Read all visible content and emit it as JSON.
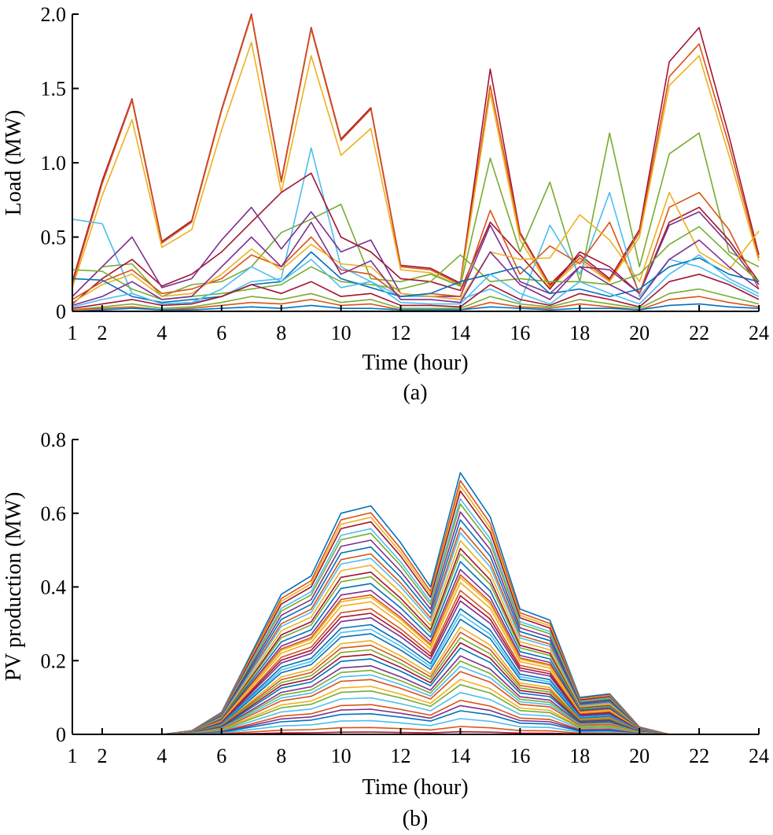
{
  "chart_data": [
    {
      "type": "line",
      "caption": "(a)",
      "xlabel": "Time (hour)",
      "ylabel": "Load (MW)",
      "xlim": [
        1,
        24
      ],
      "ylim": [
        0,
        2.0
      ],
      "xticks": [
        1,
        2,
        4,
        6,
        8,
        10,
        12,
        14,
        16,
        18,
        20,
        22,
        24
      ],
      "yticks": [
        0,
        0.5,
        1.0,
        1.5,
        2.0
      ],
      "yticklabels": [
        "0",
        "0.5",
        "1.0",
        "1.5",
        "2.0"
      ],
      "grid": false,
      "x": [
        1,
        2,
        3,
        4,
        5,
        6,
        7,
        8,
        9,
        10,
        11,
        12,
        13,
        14,
        15,
        16,
        17,
        18,
        19,
        20,
        21,
        22,
        23,
        24
      ],
      "series": [
        {
          "color": "#A2142F",
          "values": [
            0.2,
            0.88,
            1.43,
            0.47,
            0.61,
            1.36,
            2.0,
            0.88,
            1.91,
            1.16,
            1.37,
            0.31,
            0.29,
            0.19,
            1.63,
            0.53,
            0.18,
            0.38,
            0.22,
            0.55,
            1.68,
            1.91,
            1.18,
            0.38
          ]
        },
        {
          "color": "#D95319",
          "values": [
            0.18,
            0.86,
            1.42,
            0.46,
            0.6,
            1.35,
            1.99,
            0.87,
            1.9,
            1.15,
            1.36,
            0.3,
            0.28,
            0.18,
            1.52,
            0.52,
            0.17,
            0.36,
            0.21,
            0.53,
            1.58,
            1.8,
            1.12,
            0.36
          ]
        },
        {
          "color": "#EDB120",
          "values": [
            0.16,
            0.78,
            1.29,
            0.43,
            0.55,
            1.22,
            1.81,
            0.8,
            1.72,
            1.05,
            1.23,
            0.28,
            0.26,
            0.17,
            1.47,
            0.48,
            0.16,
            0.34,
            0.2,
            0.5,
            1.52,
            1.72,
            1.05,
            0.34
          ]
        },
        {
          "color": "#77AC30",
          "values": [
            0.1,
            0.3,
            0.32,
            0.1,
            0.18,
            0.2,
            0.3,
            0.53,
            0.62,
            0.72,
            0.22,
            0.2,
            0.25,
            0.17,
            1.03,
            0.4,
            0.87,
            0.2,
            1.2,
            0.3,
            1.06,
            1.2,
            0.4,
            0.3
          ]
        },
        {
          "color": "#4DBEEE",
          "values": [
            0.62,
            0.59,
            0.12,
            0.05,
            0.06,
            0.1,
            0.2,
            0.22,
            1.1,
            0.3,
            0.2,
            0.1,
            0.1,
            0.08,
            0.15,
            0.06,
            0.58,
            0.25,
            0.8,
            0.1,
            0.35,
            0.3,
            0.2,
            0.1
          ]
        },
        {
          "color": "#A2142F",
          "values": [
            0.05,
            0.22,
            0.35,
            0.17,
            0.25,
            0.4,
            0.6,
            0.8,
            0.93,
            0.5,
            0.4,
            0.22,
            0.2,
            0.14,
            0.6,
            0.38,
            0.15,
            0.4,
            0.3,
            0.12,
            0.6,
            0.7,
            0.48,
            0.2
          ]
        },
        {
          "color": "#7E2F8E",
          "values": [
            0.1,
            0.3,
            0.5,
            0.16,
            0.22,
            0.48,
            0.7,
            0.42,
            0.67,
            0.4,
            0.48,
            0.12,
            0.1,
            0.1,
            0.58,
            0.2,
            0.12,
            0.3,
            0.28,
            0.12,
            0.58,
            0.67,
            0.45,
            0.18
          ]
        },
        {
          "color": "#D95319",
          "values": [
            0.08,
            0.2,
            0.28,
            0.12,
            0.15,
            0.22,
            0.38,
            0.3,
            0.5,
            0.28,
            0.25,
            0.1,
            0.12,
            0.1,
            0.68,
            0.25,
            0.44,
            0.32,
            0.6,
            0.12,
            0.7,
            0.8,
            0.55,
            0.15
          ]
        },
        {
          "color": "#EDB120",
          "values": [
            0.06,
            0.18,
            0.25,
            0.1,
            0.12,
            0.25,
            0.42,
            0.28,
            0.45,
            0.32,
            0.3,
            0.12,
            0.1,
            0.08,
            0.4,
            0.35,
            0.36,
            0.65,
            0.48,
            0.2,
            0.8,
            0.4,
            0.28,
            0.54
          ]
        },
        {
          "color": "#77AC30",
          "values": [
            0.28,
            0.27,
            0.15,
            0.08,
            0.1,
            0.12,
            0.15,
            0.18,
            0.3,
            0.2,
            0.18,
            0.15,
            0.2,
            0.38,
            0.2,
            0.22,
            0.2,
            0.2,
            0.18,
            0.25,
            0.45,
            0.57,
            0.38,
            0.2
          ]
        },
        {
          "color": "#0072BD",
          "values": [
            0.22,
            0.21,
            0.1,
            0.06,
            0.08,
            0.1,
            0.18,
            0.2,
            0.4,
            0.22,
            0.16,
            0.1,
            0.12,
            0.2,
            0.25,
            0.3,
            0.12,
            0.15,
            0.1,
            0.15,
            0.3,
            0.36,
            0.25,
            0.2
          ]
        },
        {
          "color": "#7E2F8E",
          "values": [
            0.04,
            0.1,
            0.2,
            0.08,
            0.1,
            0.3,
            0.5,
            0.3,
            0.6,
            0.25,
            0.34,
            0.08,
            0.08,
            0.06,
            0.4,
            0.18,
            0.08,
            0.3,
            0.18,
            0.08,
            0.35,
            0.48,
            0.3,
            0.15
          ]
        },
        {
          "color": "#4DBEEE",
          "values": [
            0.03,
            0.08,
            0.12,
            0.05,
            0.06,
            0.15,
            0.3,
            0.2,
            0.35,
            0.16,
            0.2,
            0.06,
            0.05,
            0.05,
            0.25,
            0.12,
            0.05,
            0.2,
            0.12,
            0.05,
            0.25,
            0.38,
            0.22,
            0.12
          ]
        },
        {
          "color": "#A2142F",
          "values": [
            0.02,
            0.05,
            0.08,
            0.04,
            0.05,
            0.1,
            0.18,
            0.12,
            0.2,
            0.1,
            0.12,
            0.04,
            0.04,
            0.03,
            0.18,
            0.08,
            0.04,
            0.12,
            0.08,
            0.03,
            0.2,
            0.25,
            0.18,
            0.08
          ]
        },
        {
          "color": "#77AC30",
          "values": [
            0.01,
            0.03,
            0.05,
            0.02,
            0.03,
            0.06,
            0.1,
            0.08,
            0.12,
            0.06,
            0.08,
            0.02,
            0.02,
            0.02,
            0.1,
            0.05,
            0.03,
            0.08,
            0.05,
            0.02,
            0.12,
            0.15,
            0.1,
            0.05
          ]
        },
        {
          "color": "#D95319",
          "values": [
            0.01,
            0.02,
            0.03,
            0.01,
            0.02,
            0.04,
            0.06,
            0.05,
            0.08,
            0.04,
            0.05,
            0.01,
            0.01,
            0.01,
            0.06,
            0.03,
            0.02,
            0.05,
            0.03,
            0.01,
            0.08,
            0.1,
            0.06,
            0.03
          ]
        },
        {
          "color": "#0072BD",
          "values": [
            0.0,
            0.01,
            0.02,
            0.01,
            0.01,
            0.02,
            0.03,
            0.02,
            0.04,
            0.02,
            0.02,
            0.01,
            0.01,
            0.01,
            0.03,
            0.02,
            0.01,
            0.02,
            0.02,
            0.01,
            0.04,
            0.05,
            0.03,
            0.02
          ]
        }
      ]
    },
    {
      "type": "line",
      "caption": "(b)",
      "xlabel": "Time (hour)",
      "ylabel": "PV production (MW)",
      "xlim": [
        1,
        24
      ],
      "ylim": [
        0,
        0.8
      ],
      "xticks": [
        1,
        2,
        4,
        6,
        8,
        10,
        12,
        14,
        16,
        18,
        20,
        22,
        24
      ],
      "yticks": [
        0,
        0.2,
        0.4,
        0.6,
        0.8
      ],
      "yticklabels": [
        "0",
        "0.2",
        "0.4",
        "0.6",
        "0.8"
      ],
      "grid": false,
      "x": [
        1,
        2,
        3,
        4,
        5,
        6,
        7,
        8,
        9,
        10,
        11,
        12,
        13,
        14,
        15,
        16,
        17,
        18,
        19,
        20,
        21,
        22,
        23,
        24
      ],
      "profile": [
        0,
        0,
        0,
        0,
        0.01,
        0.06,
        0.22,
        0.38,
        0.43,
        0.6,
        0.62,
        0.52,
        0.4,
        0.71,
        0.59,
        0.34,
        0.31,
        0.1,
        0.11,
        0.02,
        0,
        0,
        0,
        0
      ],
      "series": [
        {
          "color": "#0072BD",
          "scale": 1.0
        },
        {
          "color": "#D95319",
          "scale": 0.97
        },
        {
          "color": "#EDB120",
          "scale": 0.95
        },
        {
          "color": "#A2142F",
          "scale": 0.93
        },
        {
          "color": "#4DBEEE",
          "scale": 0.9
        },
        {
          "color": "#77AC30",
          "scale": 0.88
        },
        {
          "color": "#7E2F8E",
          "scale": 0.85
        },
        {
          "color": "#0072BD",
          "scale": 0.82
        },
        {
          "color": "#D95319",
          "scale": 0.79
        },
        {
          "color": "#4DBEEE",
          "scale": 0.77
        },
        {
          "color": "#EDB120",
          "scale": 0.74
        },
        {
          "color": "#A2142F",
          "scale": 0.71
        },
        {
          "color": "#77AC30",
          "scale": 0.69
        },
        {
          "color": "#0072BD",
          "scale": 0.66
        },
        {
          "color": "#7E2F8E",
          "scale": 0.63
        },
        {
          "color": "#D95319",
          "scale": 0.61
        },
        {
          "color": "#EDB120",
          "scale": 0.6
        },
        {
          "color": "#EDB120",
          "scale": 0.58
        },
        {
          "color": "#D95319",
          "scale": 0.55
        },
        {
          "color": "#A2142F",
          "scale": 0.53
        },
        {
          "color": "#7E2F8E",
          "scale": 0.51
        },
        {
          "color": "#0072BD",
          "scale": 0.48
        },
        {
          "color": "#4DBEEE",
          "scale": 0.46
        },
        {
          "color": "#0072BD",
          "scale": 0.44
        },
        {
          "color": "#EDB120",
          "scale": 0.41
        },
        {
          "color": "#D95319",
          "scale": 0.39
        },
        {
          "color": "#77AC30",
          "scale": 0.37
        },
        {
          "color": "#A2142F",
          "scale": 0.35
        },
        {
          "color": "#0072BD",
          "scale": 0.33
        },
        {
          "color": "#7E2F8E",
          "scale": 0.3
        },
        {
          "color": "#77AC30",
          "scale": 0.28
        },
        {
          "color": "#4DBEEE",
          "scale": 0.26
        },
        {
          "color": "#D95319",
          "scale": 0.24
        },
        {
          "color": "#EDB120",
          "scale": 0.21
        },
        {
          "color": "#77AC30",
          "scale": 0.19
        },
        {
          "color": "#4DBEEE",
          "scale": 0.16
        },
        {
          "color": "#D95319",
          "scale": 0.13
        },
        {
          "color": "#7E2F8E",
          "scale": 0.11
        },
        {
          "color": "#0072BD",
          "scale": 0.09
        },
        {
          "color": "#4DBEEE",
          "scale": 0.06
        },
        {
          "color": "#D95319",
          "scale": 0.03
        },
        {
          "color": "#A2142F",
          "scale": 0.01
        }
      ]
    }
  ]
}
